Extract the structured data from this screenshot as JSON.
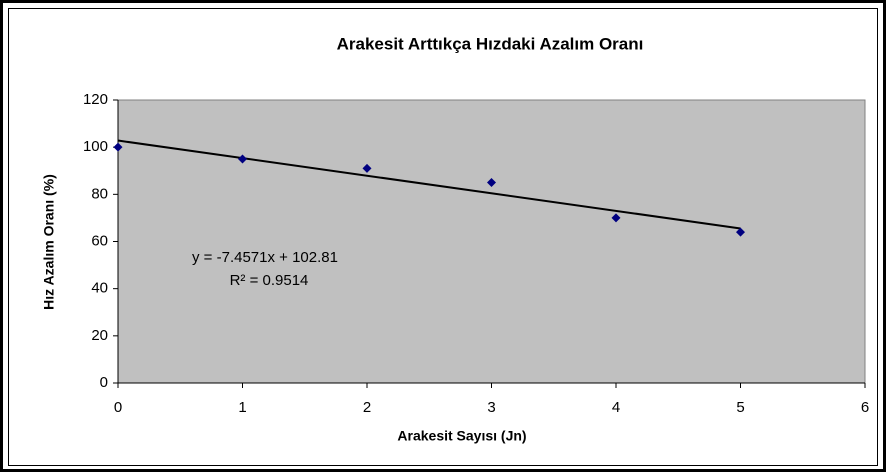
{
  "chart_data": {
    "type": "scatter",
    "title": "Arakesit Arttıkça Hızdaki Azalım Oranı",
    "x_label": "Arakesit Sayısı (Jn)",
    "y_label": "Hız Azalım Oranı (%)",
    "x": [
      0,
      1,
      2,
      3,
      4,
      5
    ],
    "values": [
      100,
      95,
      91,
      85,
      70,
      64
    ],
    "color": "#000080",
    "xlim": [
      0,
      6
    ],
    "xticks": [
      0,
      1,
      2,
      3,
      4,
      5,
      6
    ],
    "ylim": [
      0,
      120
    ],
    "yticks": [
      0,
      20,
      40,
      60,
      80,
      100,
      120
    ],
    "trendline": {
      "slope": -7.4571,
      "intercept": 102.81,
      "label": "y = -7.4571x + 102.81",
      "r2_label": "R² = 0.9514"
    }
  }
}
